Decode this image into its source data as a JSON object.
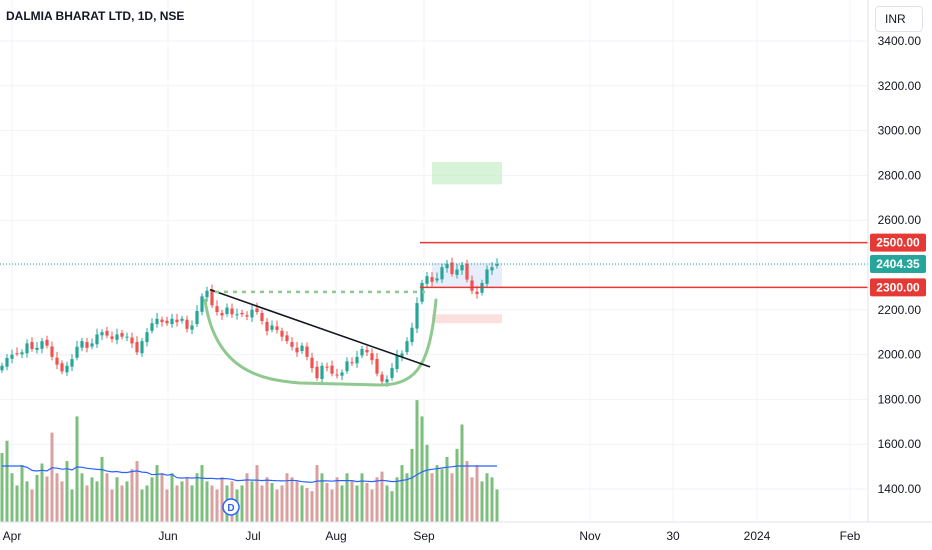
{
  "header": {
    "symbol_title": "DALMIA BHARAT LTD, 1D, NSE",
    "currency": "INR"
  },
  "colors": {
    "up": "#26a69a",
    "down": "#ef5350",
    "level_line": "#e53935",
    "volume_up": "#7cbf7c",
    "volume_down": "#d9a0a0",
    "volume_ma": "#2962ff",
    "pattern": "#8fc98f"
  },
  "chart_data": {
    "type": "candlestick",
    "title": "DALMIA BHARAT LTD, 1D, NSE",
    "y_axis": {
      "ticks": [
        3400,
        3200,
        3000,
        2800,
        2600,
        2400,
        2200,
        2000,
        1800,
        1600,
        1400
      ],
      "tick_labels": [
        "3400.00",
        "3200.00",
        "3000.00",
        "2800.00",
        "2600.00",
        "2400.00",
        "2200.00",
        "2000.00",
        "1800.00",
        "1600.00",
        "1400.00"
      ],
      "range": [
        1260,
        3460
      ]
    },
    "x_axis": {
      "labels": [
        "Apr",
        "Jun",
        "Jul",
        "Aug",
        "Sep",
        "Nov",
        "30",
        "2024",
        "Feb"
      ]
    },
    "price_labels": [
      {
        "text": "2500.00",
        "value": 2500
      },
      {
        "text": "2404.35",
        "value": 2404.35
      },
      {
        "text": "2300.00",
        "value": 2300
      }
    ],
    "horizontal_levels": [
      2500,
      2300
    ],
    "last_price": 2404.35,
    "close_series": [
      1950,
      1985,
      2000,
      2005,
      2010,
      2050,
      2025,
      2030,
      2060,
      2040,
      1990,
      1955,
      1925,
      1950,
      1980,
      2035,
      2060,
      2030,
      2050,
      2090,
      2100,
      2085,
      2070,
      2090,
      2080,
      2080,
      2050,
      2010,
      2060,
      2100,
      2140,
      2160,
      2145,
      2140,
      2160,
      2145,
      2160,
      2115,
      2130,
      2195,
      2260,
      2285,
      2220,
      2190,
      2175,
      2210,
      2180,
      2180,
      2180,
      2170,
      2200,
      2190,
      2150,
      2105,
      2130,
      2110,
      2080,
      2060,
      2035,
      2010,
      2040,
      1990,
      1940,
      1895,
      1950,
      1945,
      1915,
      1910,
      1920,
      1970,
      1965,
      1990,
      2025,
      2010,
      1975,
      1915,
      1880,
      1890,
      1940,
      1995,
      2005,
      2060,
      2120,
      2230,
      2320,
      2350,
      2325,
      2340,
      2390,
      2405,
      2360,
      2380,
      2400,
      2335,
      2285,
      2270,
      2320,
      2380,
      2390,
      2404
    ],
    "volume_series": [
      85,
      100,
      60,
      45,
      70,
      50,
      40,
      58,
      72,
      56,
      110,
      60,
      50,
      75,
      40,
      130,
      60,
      45,
      55,
      50,
      80,
      60,
      40,
      55,
      45,
      50,
      65,
      75,
      40,
      45,
      55,
      70,
      60,
      40,
      60,
      45,
      50,
      55,
      45,
      60,
      70,
      50,
      45,
      40,
      55,
      45,
      50,
      40,
      45,
      60,
      50,
      70,
      45,
      55,
      48,
      40,
      45,
      60,
      55,
      50,
      45,
      42,
      38,
      70,
      60,
      48,
      40,
      55,
      45,
      60,
      50,
      45,
      60,
      48,
      40,
      55,
      62,
      45,
      38,
      55,
      70,
      60,
      90,
      150,
      130,
      95,
      60,
      70,
      65,
      80,
      60,
      90,
      120,
      75,
      55,
      70,
      50,
      60,
      55,
      40
    ],
    "volume_ma_label": "",
    "annotations": [
      {
        "type": "cup",
        "label": ""
      },
      {
        "type": "trendline",
        "label": ""
      },
      {
        "type": "breakout-level",
        "value": 2280
      },
      {
        "type": "target-zone",
        "range": [
          2760,
          2860
        ]
      },
      {
        "type": "stop-zone",
        "range": [
          2140,
          2180
        ]
      }
    ],
    "dividend_marker": "D"
  }
}
